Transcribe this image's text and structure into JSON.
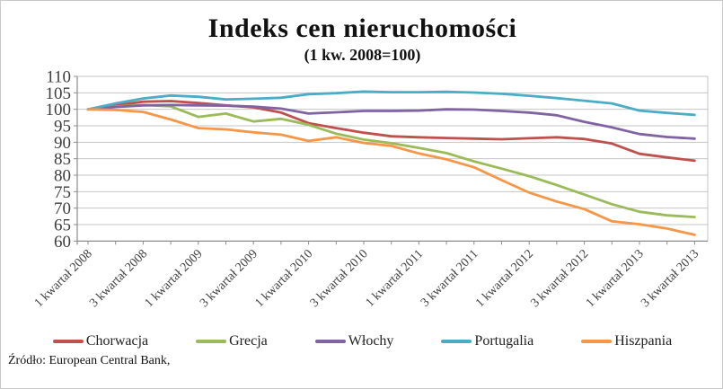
{
  "title": "Indeks cen nieruchomości",
  "subtitle": "(1 kw. 2008=100)",
  "source": "Źródło: European Central Bank,",
  "chart_data": {
    "type": "line",
    "title": "Indeks cen nieruchomości",
    "subtitle": "(1 kw. 2008=100)",
    "x_tick_labels": [
      "1 kwartał 2008",
      "3 kwartał 2008",
      "1 kwartał 2009",
      "3 kwartał 2009",
      "1 kwartał 2010",
      "3 kwartał 2010",
      "1 kwartał 2011",
      "3 kwartał 2011",
      "1 kwartał 2012",
      "3 kwartał 2012",
      "1 kwartał 2013",
      "3 kwartał 2013"
    ],
    "points_per_tick_label": 2,
    "n_points": 23,
    "ylim": [
      60,
      110
    ],
    "y_step": 5,
    "y_tick_labels": [
      "110",
      "105",
      "100",
      "95",
      "90",
      "85",
      "80",
      "75",
      "70",
      "65",
      "60"
    ],
    "grid": true,
    "legend_position": "bottom",
    "grid_color": "#c4c4c4",
    "axis_color": "#8c8c8c",
    "label_color": "#3d3d3d",
    "series": [
      {
        "name": "Chorwacja",
        "color": "#C0504D",
        "values": [
          100,
          101.2,
          102.3,
          102.5,
          101.9,
          101.2,
          100.6,
          99.0,
          95.8,
          94.3,
          92.9,
          91.8,
          91.5,
          91.3,
          91.1,
          90.9,
          91.2,
          91.5,
          91.0,
          89.6,
          86.5,
          85.4,
          84.4
        ]
      },
      {
        "name": "Grecja",
        "color": "#9BBB59",
        "values": [
          100,
          100.8,
          101.3,
          100.9,
          97.7,
          98.7,
          96.3,
          97.1,
          95.3,
          92.6,
          90.8,
          89.7,
          88.3,
          86.7,
          84.2,
          82.0,
          79.7,
          77.0,
          74.1,
          71.2,
          68.9,
          67.8,
          67.3
        ]
      },
      {
        "name": "Włochy",
        "color": "#8064A2",
        "values": [
          100,
          100.7,
          101.2,
          101.3,
          101.2,
          101.1,
          100.8,
          100.2,
          98.7,
          99.1,
          99.5,
          99.5,
          99.6,
          100.0,
          99.9,
          99.5,
          99.0,
          98.2,
          96.2,
          94.5,
          92.5,
          91.6,
          91.1
        ]
      },
      {
        "name": "Portugalia",
        "color": "#4BACC6",
        "values": [
          100,
          101.8,
          103.3,
          104.2,
          103.8,
          103.0,
          103.2,
          103.5,
          104.6,
          104.9,
          105.4,
          105.2,
          105.2,
          105.3,
          105.1,
          104.7,
          104.1,
          103.4,
          102.6,
          101.8,
          99.6,
          98.9,
          98.3
        ]
      },
      {
        "name": "Hiszpania",
        "color": "#F79646",
        "values": [
          100,
          99.8,
          99.2,
          96.9,
          94.3,
          93.9,
          93.0,
          92.3,
          90.4,
          91.5,
          89.8,
          88.9,
          86.6,
          84.8,
          82.4,
          78.5,
          74.7,
          72.0,
          69.7,
          66.0,
          65.1,
          63.8,
          61.9
        ]
      }
    ]
  }
}
